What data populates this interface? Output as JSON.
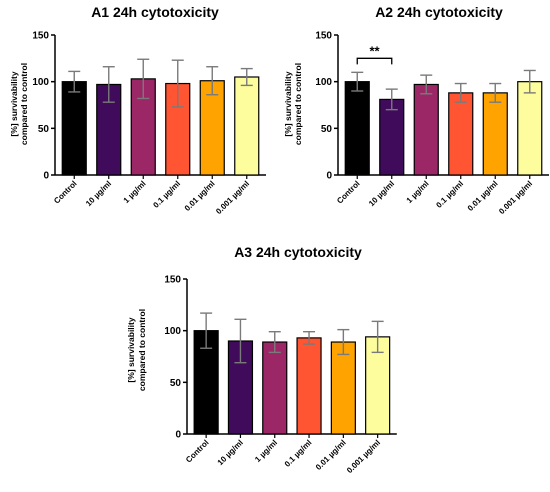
{
  "colors": [
    "#000000",
    "#3f0b5a",
    "#9c2767",
    "#ff5533",
    "#ffa300",
    "#fdfd9e"
  ],
  "chart_data": [
    {
      "type": "bar",
      "title": "A1 24h cytotoxicity",
      "ylabel": "[%] survivability compared to control",
      "ylabel_lines": [
        "[%] survivability",
        "compared to control"
      ],
      "categories": [
        "Control",
        "10 µg/ml",
        "1 µg/ml",
        "0.1 µg/ml",
        "0.01 µg/ml",
        "0.001 µg/ml"
      ],
      "values": [
        100,
        97,
        103,
        98,
        101,
        105
      ],
      "errors": [
        11,
        19,
        21,
        25,
        15,
        9
      ],
      "ylim": [
        0,
        150
      ],
      "yticks": [
        0,
        50,
        100,
        150
      ],
      "ytick_labels": [
        "0",
        "50",
        "100",
        "150"
      ],
      "grid": false
    },
    {
      "type": "bar",
      "title": "A2 24h cytotoxicity",
      "ylabel": "[%] survivability compared to control",
      "ylabel_lines": [
        "[%] survivability",
        "compared to control"
      ],
      "categories": [
        "Control",
        "10 µg/ml",
        "1 µg/ml",
        "0.1 µg/ml",
        "0.01 µg/ml",
        "0.001 µg/ml"
      ],
      "values": [
        100,
        81,
        97,
        88,
        88,
        100
      ],
      "errors": [
        10,
        11,
        10,
        10,
        10,
        12
      ],
      "ylim": [
        0,
        150
      ],
      "yticks": [
        0,
        50,
        100,
        150
      ],
      "ytick_labels": [
        "0",
        "50",
        "100",
        "150"
      ],
      "grid": false,
      "annotations": [
        {
          "text": "**",
          "from": 0,
          "to": 1,
          "y": 125
        }
      ]
    },
    {
      "type": "bar",
      "title": "A3 24h cytotoxicity",
      "ylabel": "[%] survivability compared to control",
      "ylabel_lines": [
        "[%] survivability",
        "compared to control"
      ],
      "categories": [
        "Control",
        "10 µg/ml",
        "1 µg/ml",
        "0.1 µg/ml",
        "0.01 µg/ml",
        "0.001 µg/ml"
      ],
      "values": [
        100,
        90,
        89,
        93,
        89,
        94
      ],
      "errors": [
        17,
        21,
        10,
        6,
        12,
        15
      ],
      "ylim": [
        0,
        150
      ],
      "yticks": [
        0,
        50,
        100,
        150
      ],
      "ytick_labels": [
        "0",
        "50",
        "100",
        "150"
      ],
      "grid": false
    }
  ]
}
